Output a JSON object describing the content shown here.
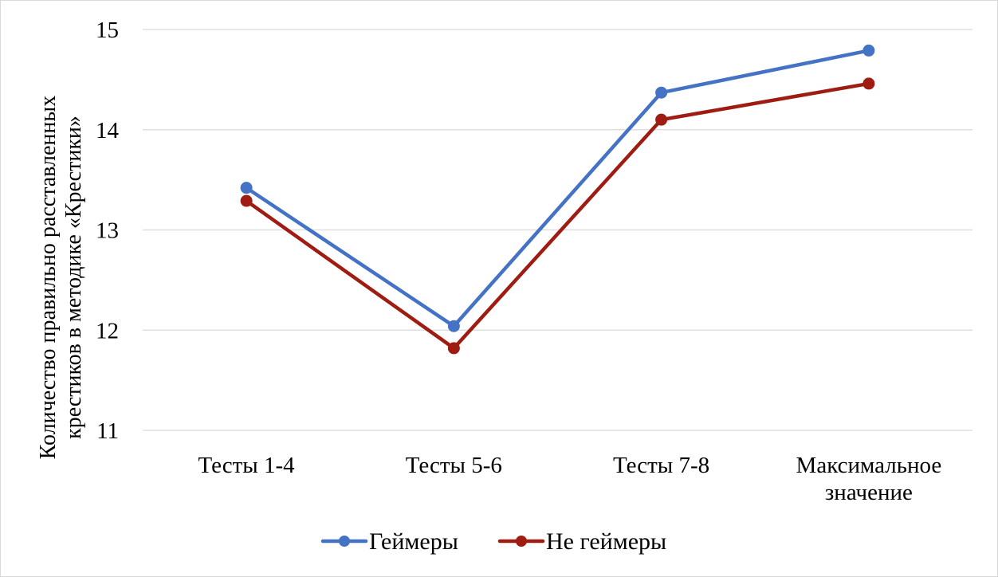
{
  "chart_data": {
    "type": "line",
    "categories": [
      [
        "Тесты 1-4"
      ],
      [
        "Тесты 5-6"
      ],
      [
        "Тесты 7-8"
      ],
      [
        "Максимальное",
        "значение"
      ]
    ],
    "series": [
      {
        "name": "Геймеры",
        "color": "#4472C4",
        "values": [
          13.42,
          12.04,
          14.37,
          14.79
        ]
      },
      {
        "name": "Не геймеры",
        "color": "#9E1C12",
        "values": [
          13.29,
          11.82,
          14.1,
          14.46
        ]
      }
    ],
    "ylabel": [
      "Количество правильно расставленных",
      "крестиков в методике «Крестики»"
    ],
    "ylim": [
      11,
      15
    ],
    "yticks": [
      11,
      12,
      13,
      14,
      15
    ],
    "grid": true,
    "legend_position": "bottom"
  }
}
